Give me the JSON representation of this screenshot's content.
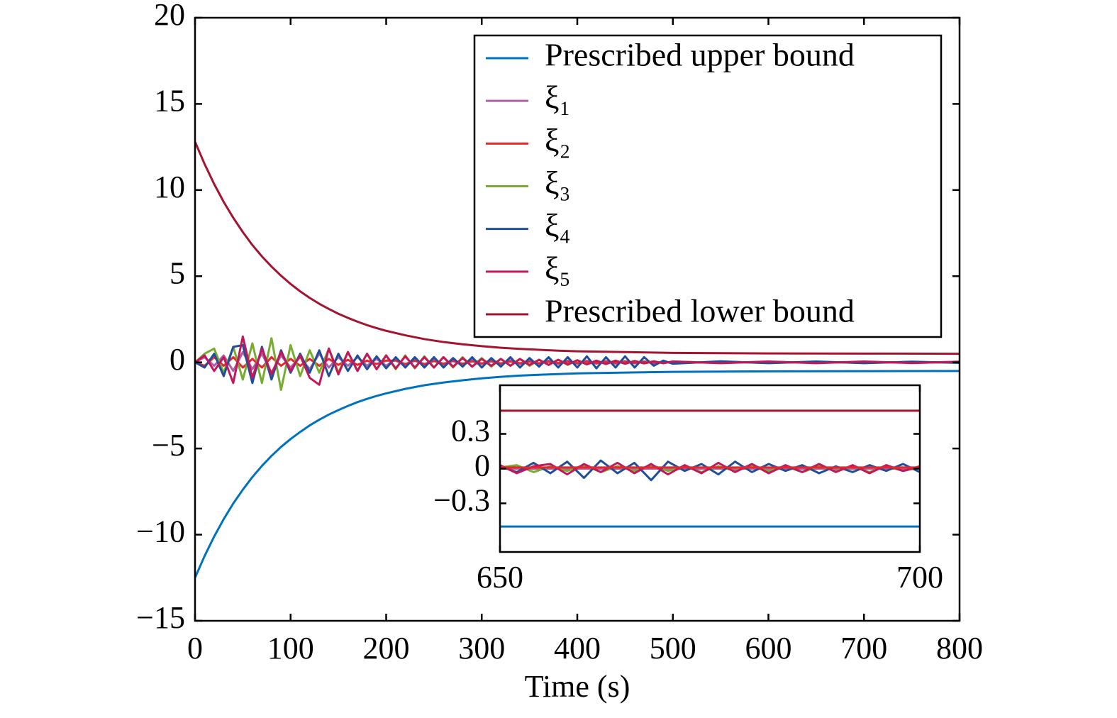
{
  "chart_data": [
    {
      "type": "line",
      "xlabel": "Time (s)",
      "legend": "upper right",
      "xlim": [
        0,
        800
      ],
      "ylim": [
        -15,
        20
      ],
      "xticks": [
        0,
        100,
        200,
        300,
        400,
        500,
        600,
        700,
        800
      ],
      "yticks": [
        {
          "value": -15,
          "label": "−15"
        },
        {
          "value": -10,
          "label": "−10"
        },
        {
          "value": -5,
          "label": "−5"
        },
        0,
        5,
        10,
        15,
        20
      ],
      "x": [
        0,
        10,
        20,
        30,
        40,
        50,
        60,
        70,
        80,
        90,
        100,
        110,
        120,
        130,
        140,
        150,
        160,
        170,
        180,
        190,
        200,
        210,
        220,
        230,
        240,
        250,
        260,
        270,
        280,
        290,
        300,
        310,
        320,
        330,
        340,
        350,
        360,
        370,
        380,
        390,
        400,
        410,
        420,
        430,
        440,
        450,
        460,
        470,
        480,
        490,
        500,
        550,
        600,
        650,
        700,
        750,
        800
      ],
      "series": [
        {
          "name": "Prescribed upper bound",
          "color": "#0072bd",
          "x": [
            0,
            10,
            20,
            30,
            40,
            50,
            60,
            70,
            80,
            90,
            100,
            110,
            120,
            130,
            140,
            150,
            160,
            170,
            180,
            190,
            200,
            220,
            240,
            260,
            280,
            300,
            320,
            340,
            360,
            380,
            400,
            500,
            600,
            700,
            800
          ],
          "values": [
            -12.5,
            -11.24,
            -10.11,
            -9.1,
            -8.19,
            -7.39,
            -6.66,
            -6.01,
            -5.43,
            -4.91,
            -4.45,
            -4.04,
            -3.66,
            -3.33,
            -3.03,
            -2.77,
            -2.53,
            -2.31,
            -2.12,
            -1.95,
            -1.8,
            -1.54,
            -1.33,
            -1.17,
            -1.04,
            -0.93,
            -0.84,
            -0.77,
            -0.72,
            -0.68,
            -0.64,
            -0.55,
            -0.52,
            -0.51,
            -0.5
          ]
        },
        {
          "name": "ξ₁",
          "color": "#b05fa5",
          "values": [
            0,
            0.3,
            -0.2,
            0.4,
            -0.5,
            0.6,
            -0.4,
            0.5,
            -0.6,
            0.4,
            -0.3,
            0.3,
            -0.4,
            0.5,
            -0.3,
            0.3,
            -0.2,
            0.3,
            -0.2,
            0.2,
            -0.2,
            0.2,
            -0.2,
            0.2,
            -0.15,
            0.2,
            -0.15,
            0.15,
            -0.15,
            0.15,
            -0.1,
            0.15,
            -0.1,
            0.12,
            -0.1,
            0.12,
            -0.1,
            0.1,
            -0.1,
            0.1,
            -0.08,
            0.1,
            -0.08,
            0.08,
            -0.08,
            0.08,
            -0.06,
            0.06,
            -0.06,
            0.05,
            -0.05,
            0.03,
            -0.03,
            0.02,
            -0.02,
            0.02,
            -0.01
          ]
        },
        {
          "name": "ξ₂",
          "color": "#e8262b",
          "values": [
            0,
            -0.2,
            0.3,
            -0.2,
            0.3,
            -0.3,
            0.2,
            -0.3,
            0.3,
            -0.2,
            0.2,
            -0.2,
            0.2,
            -0.2,
            0.2,
            -0.15,
            0.15,
            -0.15,
            0.1,
            -0.1,
            0.1,
            0.1,
            -0.1,
            0.1,
            -0.1,
            0.08,
            -0.08,
            0.08,
            -0.08,
            0.06,
            -0.06,
            0.06,
            -0.06,
            0.05,
            -0.05,
            0.05,
            -0.05,
            0.04,
            -0.04,
            0.04,
            -0.04,
            0.03,
            -0.03,
            0.03,
            -0.03,
            0.03,
            -0.02,
            0.02,
            -0.02,
            0.02,
            -0.02,
            0.01,
            0.01,
            0.01,
            0.01,
            0.01,
            0.01
          ]
        },
        {
          "name": "ξ₃",
          "color": "#77ac30",
          "values": [
            0,
            0.5,
            0.8,
            -0.6,
            0.9,
            -1.0,
            1.1,
            -1.2,
            1.4,
            -1.6,
            1.0,
            -0.8,
            0.7,
            -0.6,
            0.8,
            -0.6,
            0.6,
            -0.5,
            0.5,
            -0.4,
            0.4,
            -0.4,
            0.4,
            -0.35,
            0.35,
            -0.3,
            0.3,
            -0.3,
            0.3,
            -0.25,
            0.25,
            -0.25,
            0.2,
            -0.2,
            0.2,
            -0.2,
            0.15,
            -0.15,
            0.15,
            -0.15,
            0.12,
            -0.12,
            0.1,
            -0.1,
            0.1,
            -0.08,
            0.08,
            -0.06,
            0.06,
            -0.05,
            0.05,
            -0.03,
            0.03,
            -0.02,
            0.02,
            -0.02,
            0.01
          ]
        },
        {
          "name": "ξ₄",
          "color": "#1f4e9c",
          "values": [
            0,
            -0.3,
            0.5,
            -0.8,
            0.9,
            1.0,
            -1.2,
            0.9,
            -1.0,
            0.7,
            -0.6,
            0.5,
            -0.6,
            0.7,
            -0.8,
            0.5,
            -0.5,
            0.4,
            -0.4,
            0.35,
            -0.35,
            0.3,
            -0.3,
            0.3,
            -0.3,
            0.3,
            -0.3,
            0.25,
            -0.25,
            0.3,
            -0.3,
            0.25,
            -0.25,
            0.3,
            -0.3,
            0.25,
            -0.25,
            0.3,
            -0.3,
            0.3,
            -0.3,
            0.35,
            -0.35,
            0.3,
            -0.3,
            0.35,
            -0.3,
            0.3,
            -0.2,
            0.1,
            -0.08,
            0.06,
            -0.05,
            0.05,
            -0.05,
            0.04,
            -0.03
          ]
        },
        {
          "name": "ξ₅",
          "color": "#c2185b",
          "values": [
            0,
            0.4,
            -0.5,
            0.3,
            -1.2,
            1.5,
            -0.9,
            0.8,
            -0.7,
            0.6,
            -0.5,
            0.4,
            -0.9,
            -1.3,
            0.8,
            -0.7,
            0.6,
            -0.5,
            0.5,
            -0.4,
            0.4,
            -0.35,
            0.35,
            -0.3,
            0.3,
            -0.3,
            0.3,
            -0.25,
            0.25,
            -0.25,
            0.2,
            -0.2,
            0.2,
            -0.2,
            0.2,
            -0.15,
            0.15,
            -0.15,
            0.15,
            -0.12,
            0.12,
            -0.12,
            0.1,
            -0.1,
            0.1,
            -0.08,
            0.08,
            -0.06,
            0.06,
            -0.05,
            0.05,
            -0.05,
            0.05,
            -0.05,
            0.05,
            -0.04,
            0.04
          ]
        },
        {
          "name": "Prescribed lower bound",
          "color": "#a2142f",
          "x": [
            0,
            10,
            20,
            30,
            40,
            50,
            60,
            70,
            80,
            90,
            100,
            110,
            120,
            130,
            140,
            150,
            160,
            170,
            180,
            190,
            200,
            220,
            240,
            260,
            280,
            300,
            320,
            340,
            360,
            380,
            400,
            500,
            600,
            700,
            800
          ],
          "values": [
            12.8,
            11.51,
            10.35,
            9.31,
            8.39,
            7.56,
            6.81,
            6.15,
            5.56,
            5.03,
            4.55,
            4.12,
            3.74,
            3.4,
            3.1,
            2.82,
            2.58,
            2.36,
            2.16,
            1.99,
            1.83,
            1.57,
            1.35,
            1.18,
            1.05,
            0.94,
            0.85,
            0.78,
            0.73,
            0.68,
            0.64,
            0.55,
            0.52,
            0.51,
            0.5
          ]
        }
      ]
    },
    {
      "type": "line",
      "xlim": [
        650,
        700
      ],
      "ylim": [
        -0.72,
        0.72
      ],
      "xticks": [
        650,
        700
      ],
      "yticks": [
        {
          "value": -0.3,
          "label": "−0.3"
        },
        0,
        0.3
      ],
      "x": [
        650,
        652,
        654,
        656,
        658,
        660,
        662,
        664,
        666,
        668,
        670,
        672,
        674,
        676,
        678,
        680,
        682,
        684,
        686,
        688,
        690,
        692,
        694,
        696,
        698,
        700
      ],
      "series": [
        {
          "color": "#0072bd",
          "x": [
            650,
            700
          ],
          "values": [
            -0.5,
            -0.5
          ]
        },
        {
          "color": "#b05fa5",
          "x": [
            650,
            700
          ],
          "values": [
            0,
            0
          ]
        },
        {
          "color": "#77ac30",
          "values": [
            0.01,
            0.03,
            -0.03,
            0.02,
            -0.02,
            0.03,
            -0.03,
            0.02,
            -0.02,
            0.03,
            -0.02,
            0.02,
            -0.03,
            0.02,
            -0.02,
            0.03,
            -0.02,
            0.02,
            -0.03,
            0.02,
            -0.02,
            0.02,
            -0.03,
            0.02,
            -0.02,
            0.01
          ]
        },
        {
          "color": "#1f4e9c",
          "values": [
            0.02,
            -0.03,
            0.05,
            -0.04,
            0.06,
            -0.08,
            0.07,
            -0.04,
            0.05,
            -0.1,
            0.06,
            -0.02,
            0.04,
            -0.05,
            0.06,
            -0.03,
            0.04,
            -0.02,
            0.03,
            -0.04,
            0.02,
            -0.03,
            0.03,
            -0.02,
            0.04,
            -0.03
          ]
        },
        {
          "color": "#c2185b",
          "values": [
            0.03,
            -0.04,
            0.02,
            0.04,
            -0.05,
            0.04,
            -0.03,
            0.05,
            -0.04,
            0.04,
            -0.05,
            0.03,
            -0.04,
            0.05,
            -0.03,
            0.04,
            -0.04,
            0.03,
            -0.03,
            0.04,
            -0.03,
            0.03,
            -0.04,
            0.03,
            -0.02,
            0.02
          ]
        },
        {
          "color": "#e8262b",
          "x": [
            650,
            700
          ],
          "values": [
            0.01,
            0.01
          ]
        },
        {
          "color": "#a2142f",
          "x": [
            650,
            700
          ],
          "values": [
            0.5,
            0.5
          ]
        }
      ]
    }
  ]
}
